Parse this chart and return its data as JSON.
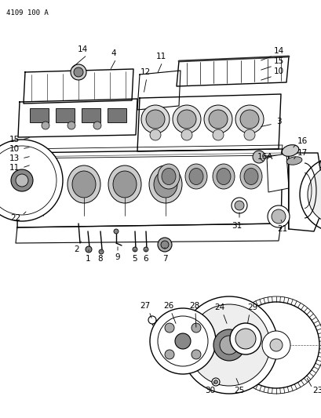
{
  "bg_color": "#ffffff",
  "line_color": "#000000",
  "text_color": "#000000",
  "header_text": "4109 100 A",
  "fig_width": 4.1,
  "fig_height": 5.33,
  "dpi": 100
}
